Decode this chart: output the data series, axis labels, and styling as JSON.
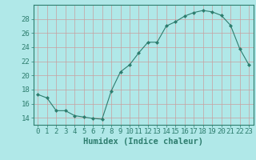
{
  "x": [
    0,
    1,
    2,
    3,
    4,
    5,
    6,
    7,
    8,
    9,
    10,
    11,
    12,
    13,
    14,
    15,
    16,
    17,
    18,
    19,
    20,
    21,
    22,
    23
  ],
  "y": [
    17.3,
    16.8,
    15.0,
    15.0,
    14.3,
    14.1,
    13.9,
    13.8,
    17.8,
    20.5,
    21.5,
    23.2,
    24.7,
    24.7,
    27.0,
    27.6,
    28.4,
    28.9,
    29.2,
    29.0,
    28.5,
    27.1,
    23.8,
    21.5
  ],
  "line_color": "#2d7d6e",
  "marker": "D",
  "marker_size": 2.5,
  "bg_color": "#b0e8e8",
  "grid_color": "#c8a0a0",
  "xlabel": "Humidex (Indice chaleur)",
  "xlim": [
    -0.5,
    23.5
  ],
  "ylim": [
    13.0,
    30.0
  ],
  "xticks": [
    0,
    1,
    2,
    3,
    4,
    5,
    6,
    7,
    8,
    9,
    10,
    11,
    12,
    13,
    14,
    15,
    16,
    17,
    18,
    19,
    20,
    21,
    22,
    23
  ],
  "yticks": [
    14,
    16,
    18,
    20,
    22,
    24,
    26,
    28
  ],
  "tick_color": "#2d7d6e",
  "label_fontsize": 6.5,
  "xlabel_fontsize": 7.5
}
